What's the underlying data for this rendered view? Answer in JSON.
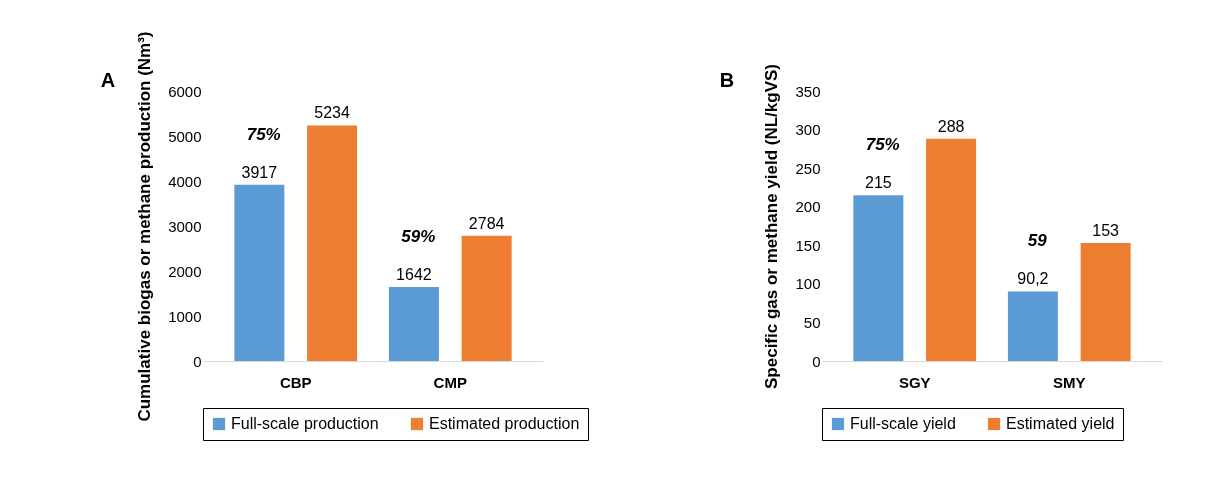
{
  "chart_data": [
    {
      "type": "bar",
      "categories": [
        "CBP",
        "CMP"
      ],
      "ylabel": "Cumulative biogas or methane production (Nm³)",
      "ylim": [
        0,
        6000
      ],
      "yticks": [
        0,
        1000,
        2000,
        3000,
        4000,
        5000,
        6000
      ],
      "grid": false,
      "legend": "bottom",
      "data_labels": true,
      "series": [
        {
          "name": "Full-scale production",
          "color": "#5b9bd5",
          "values": [
            3917,
            1642
          ]
        },
        {
          "name": "Estimated production",
          "color": "#ed7d31",
          "values": [
            5234,
            2784
          ]
        }
      ],
      "annotations": [
        "A",
        "75%",
        "59%"
      ]
    },
    {
      "type": "bar",
      "categories": [
        "SGY",
        "SMY"
      ],
      "ylabel": "Specific gas or methane yield (NL/kgVS)",
      "ylim": [
        0,
        350
      ],
      "yticks": [
        0,
        50,
        100,
        150,
        200,
        250,
        300,
        350
      ],
      "grid": false,
      "legend": "bottom",
      "series": [
        {
          "name": "Full-scale yield",
          "color": "#5b9bd5",
          "values": [
            215,
            90.2
          ],
          "value_labels": [
            "215",
            "90,2"
          ]
        },
        {
          "name": "Estimated yield",
          "color": "#ed7d31",
          "values": [
            288,
            153
          ],
          "value_labels": [
            "288",
            "153"
          ]
        }
      ],
      "annotations": [
        "B",
        "75%",
        "59"
      ]
    }
  ]
}
